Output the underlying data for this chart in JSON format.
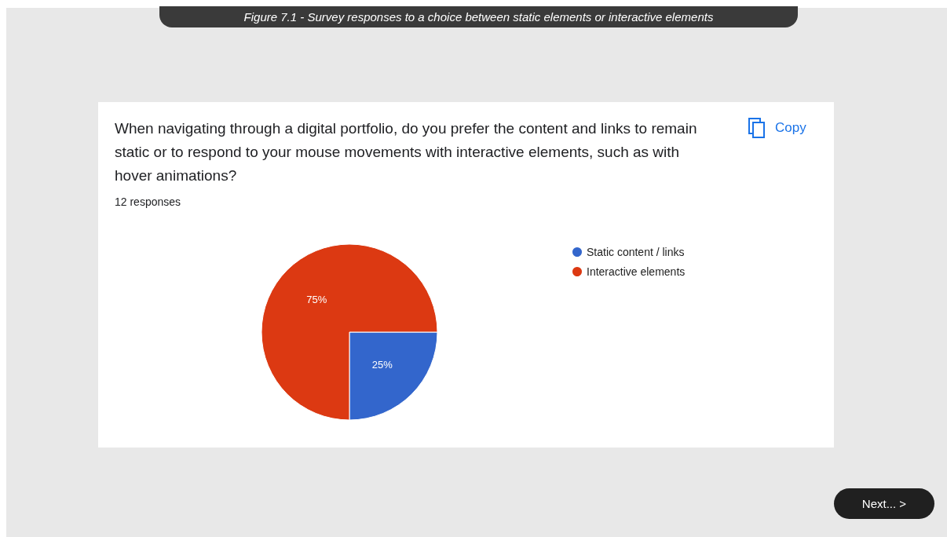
{
  "chart_data": {
    "type": "pie",
    "title": "When navigating through a digital portfolio, do you prefer the content and links to remain static or to respond to your mouse movements with interactive elements, such as with hover animations?",
    "subtitle": "12 responses",
    "categories": [
      "Static content / links",
      "Interactive elements"
    ],
    "values": [
      25,
      75
    ],
    "colors": [
      "#3366cc",
      "#dc3912"
    ],
    "legend": "right",
    "value_labels": [
      "25%",
      "75%"
    ],
    "annotations": [
      "Figure 7.1 - Survey responses to a choice between static elements or interactive elements",
      "Copy",
      "Next... >"
    ]
  }
}
